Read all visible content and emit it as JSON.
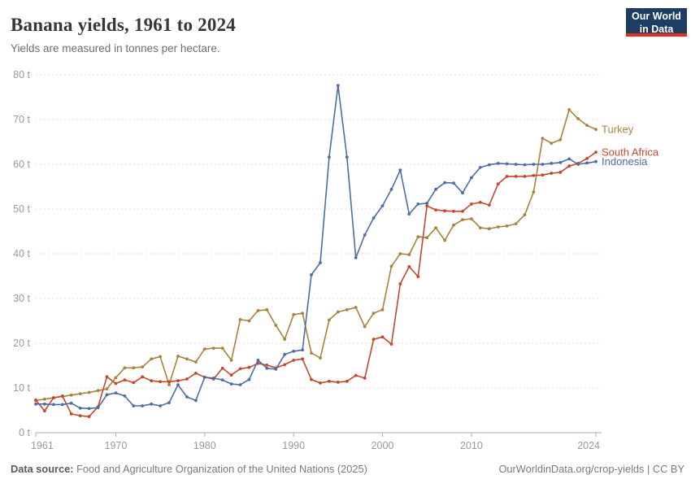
{
  "header": {
    "title": "Banana yields, 1961 to 2024",
    "subtitle": "Yields are measured in tonnes per hectare."
  },
  "logo": {
    "line1": "Our World",
    "line2": "in Data",
    "bg_color": "#1D3D63",
    "accent_color": "#E0301F"
  },
  "footer": {
    "source_label": "Data source:",
    "source_text": " Food and Agriculture Organization of the United Nations (2025)",
    "credit": "OurWorldinData.org/crop-yields | CC BY"
  },
  "chart_data": {
    "type": "line",
    "title": "Banana yields, 1961 to 2024",
    "xlabel": "",
    "ylabel": "tonnes per hectare",
    "unit_suffix": " t",
    "xlim": [
      1961,
      2024
    ],
    "ylim": [
      0,
      80
    ],
    "grid": "dashed-horizontal",
    "legend_position": "right-of-line-ends",
    "x_ticks": [
      1961,
      1970,
      1980,
      1990,
      2000,
      2010,
      2024
    ],
    "y_ticks": [
      0,
      10,
      20,
      30,
      40,
      50,
      60,
      70,
      80
    ],
    "x": [
      1961,
      1962,
      1963,
      1964,
      1965,
      1966,
      1967,
      1968,
      1969,
      1970,
      1971,
      1972,
      1973,
      1974,
      1975,
      1976,
      1977,
      1978,
      1979,
      1980,
      1981,
      1982,
      1983,
      1984,
      1985,
      1986,
      1987,
      1988,
      1989,
      1990,
      1991,
      1992,
      1993,
      1994,
      1995,
      1996,
      1997,
      1998,
      1999,
      2000,
      2001,
      2002,
      2003,
      2004,
      2005,
      2006,
      2007,
      2008,
      2009,
      2010,
      2011,
      2012,
      2013,
      2014,
      2015,
      2016,
      2017,
      2018,
      2019,
      2020,
      2021,
      2022,
      2023,
      2024
    ],
    "series": [
      {
        "name": "Turkey",
        "color": "#A9823C",
        "values": [
          7.2,
          7.5,
          7.8,
          8.1,
          8.4,
          8.7,
          9.0,
          9.4,
          9.8,
          12.3,
          14.5,
          14.5,
          14.7,
          16.5,
          17.0,
          10.7,
          17.1,
          16.5,
          15.8,
          18.7,
          18.9,
          18.9,
          16.2,
          25.3,
          25.0,
          27.3,
          27.5,
          24.0,
          20.9,
          26.4,
          26.7,
          17.8,
          16.7,
          25.2,
          27.0,
          27.5,
          28.0,
          23.7,
          26.7,
          27.5,
          37.2,
          40.0,
          39.8,
          43.8,
          43.6,
          45.8,
          43.0,
          46.4,
          47.6,
          47.8,
          45.8,
          45.6,
          46.0,
          46.2,
          46.7,
          48.7,
          53.8,
          65.8,
          64.7,
          65.5,
          72.2,
          70.2,
          68.7,
          67.8
        ]
      },
      {
        "name": "South Africa",
        "color": "#C5472B",
        "values": [
          7.3,
          4.9,
          7.8,
          8.2,
          4.2,
          3.8,
          3.6,
          5.8,
          12.5,
          11.0,
          11.8,
          11.2,
          12.5,
          11.6,
          11.4,
          11.4,
          11.6,
          12.0,
          13.3,
          12.4,
          12.0,
          14.4,
          12.9,
          14.3,
          14.6,
          15.5,
          15.1,
          14.5,
          15.2,
          16.2,
          16.5,
          11.9,
          11.1,
          11.5,
          11.3,
          11.5,
          12.8,
          12.2,
          20.9,
          21.4,
          19.8,
          33.3,
          37.1,
          34.9,
          50.7,
          49.8,
          49.6,
          49.5,
          49.5,
          51.1,
          51.5,
          50.9,
          55.6,
          57.3,
          57.3,
          57.3,
          57.5,
          57.6,
          58.0,
          58.2,
          59.6,
          60.2,
          61.3,
          62.7
        ]
      },
      {
        "name": "Indonesia",
        "color": "#4C6DA5",
        "values": [
          6.4,
          6.4,
          6.3,
          6.3,
          6.6,
          5.5,
          5.4,
          5.6,
          8.5,
          8.9,
          8.2,
          6.0,
          6.0,
          6.4,
          6.0,
          6.7,
          10.7,
          8.0,
          7.2,
          12.4,
          12.2,
          11.8,
          10.9,
          10.7,
          11.9,
          16.2,
          14.4,
          14.2,
          17.5,
          18.2,
          18.5,
          35.3,
          38.0,
          61.6,
          77.6,
          61.6,
          39.1,
          44.2,
          48.0,
          50.7,
          54.4,
          58.7,
          48.9,
          51.1,
          51.3,
          54.4,
          55.9,
          55.8,
          53.6,
          57.0,
          59.3,
          59.9,
          60.2,
          60.1,
          60.0,
          59.9,
          60.0,
          60.0,
          60.2,
          60.4,
          61.2,
          60.0,
          60.3,
          60.6
        ]
      }
    ]
  }
}
